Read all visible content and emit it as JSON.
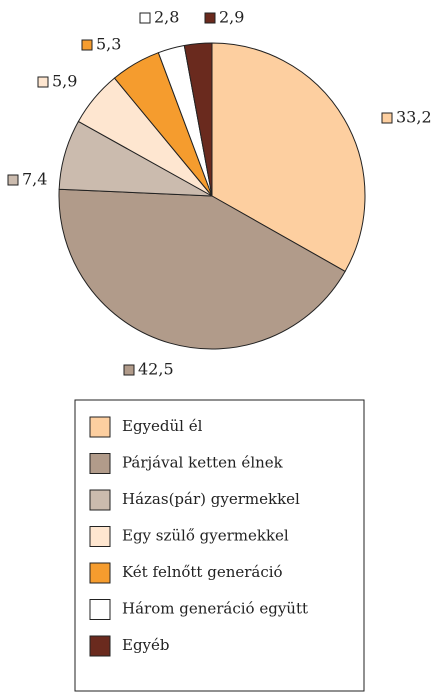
{
  "chart_data": {
    "type": "pie",
    "categories": [
      "Egyedül él",
      "Párjával ketten élnek",
      "Házas(pár) gyermekkel",
      "Egy szülő gyermekkel",
      "Két felnőtt generáció",
      "Három generáció együtt",
      "Egyéb"
    ],
    "values": [
      33.2,
      42.5,
      7.4,
      5.9,
      5.3,
      2.8,
      2.9
    ],
    "value_labels": [
      "33,2",
      "42,5",
      "7,4",
      "5,9",
      "5,3",
      "2,8",
      "2,9"
    ],
    "colors": [
      "#fdcfa0",
      "#b19b8a",
      "#cbbbae",
      "#fee6d0",
      "#f59c2e",
      "#ffffff",
      "#6a2a1e"
    ],
    "legend": "bottom"
  }
}
